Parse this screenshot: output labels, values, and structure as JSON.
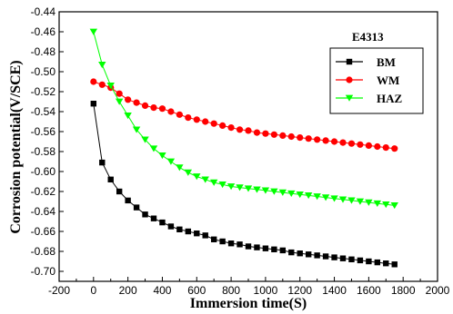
{
  "chart_data": {
    "type": "line",
    "title": "",
    "xlabel": "Immersion time(S)",
    "ylabel": "Corrosion potential(V/SCE)",
    "xlim": [
      -200,
      2000
    ],
    "ylim": [
      -0.71,
      -0.44
    ],
    "xticks": [
      -200,
      0,
      200,
      400,
      600,
      800,
      1000,
      1200,
      1400,
      1600,
      1800,
      2000
    ],
    "yticks": [
      -0.7,
      -0.68,
      -0.66,
      -0.64,
      -0.62,
      -0.6,
      -0.58,
      -0.56,
      -0.54,
      -0.52,
      -0.5,
      -0.48,
      -0.46,
      -0.44
    ],
    "xtick_labels": [
      "-200",
      "0",
      "200",
      "400",
      "600",
      "800",
      "1000",
      "1200",
      "1400",
      "1600",
      "1800",
      "2000"
    ],
    "ytick_labels": [
      "-0.70",
      "-0.68",
      "-0.66",
      "-0.64",
      "-0.62",
      "-0.60",
      "-0.58",
      "-0.56",
      "-0.54",
      "-0.52",
      "-0.50",
      "-0.48",
      "-0.46",
      "-0.44"
    ],
    "legend": {
      "title": "E4313",
      "placement": "top-right",
      "entries": [
        "BM",
        "WM",
        "HAZ"
      ]
    },
    "series": [
      {
        "name": "BM",
        "color": "#000000",
        "marker": "square",
        "x": [
          0,
          50,
          100,
          150,
          200,
          250,
          300,
          350,
          400,
          450,
          500,
          550,
          600,
          650,
          700,
          750,
          800,
          850,
          900,
          950,
          1000,
          1050,
          1100,
          1150,
          1200,
          1250,
          1300,
          1350,
          1400,
          1450,
          1500,
          1550,
          1600,
          1650,
          1700,
          1750
        ],
        "y": [
          -0.532,
          -0.591,
          -0.608,
          -0.62,
          -0.629,
          -0.636,
          -0.643,
          -0.647,
          -0.651,
          -0.655,
          -0.658,
          -0.66,
          -0.662,
          -0.664,
          -0.668,
          -0.67,
          -0.672,
          -0.673,
          -0.675,
          -0.676,
          -0.677,
          -0.678,
          -0.679,
          -0.681,
          -0.682,
          -0.683,
          -0.684,
          -0.685,
          -0.686,
          -0.687,
          -0.688,
          -0.689,
          -0.69,
          -0.691,
          -0.692,
          -0.693
        ]
      },
      {
        "name": "WM",
        "color": "#ff0000",
        "marker": "circle",
        "x": [
          0,
          50,
          100,
          150,
          200,
          250,
          300,
          350,
          400,
          450,
          500,
          550,
          600,
          650,
          700,
          750,
          800,
          850,
          900,
          950,
          1000,
          1050,
          1100,
          1150,
          1200,
          1250,
          1300,
          1350,
          1400,
          1450,
          1500,
          1550,
          1600,
          1650,
          1700,
          1750
        ],
        "y": [
          -0.51,
          -0.513,
          -0.516,
          -0.522,
          -0.528,
          -0.531,
          -0.534,
          -0.536,
          -0.537,
          -0.54,
          -0.543,
          -0.546,
          -0.548,
          -0.55,
          -0.552,
          -0.554,
          -0.556,
          -0.558,
          -0.559,
          -0.561,
          -0.562,
          -0.563,
          -0.564,
          -0.565,
          -0.566,
          -0.567,
          -0.568,
          -0.569,
          -0.57,
          -0.571,
          -0.572,
          -0.573,
          -0.574,
          -0.575,
          -0.576,
          -0.577
        ]
      },
      {
        "name": "HAZ",
        "color": "#00ff00",
        "marker": "triangle-down",
        "x": [
          0,
          50,
          100,
          150,
          200,
          250,
          300,
          350,
          400,
          450,
          500,
          550,
          600,
          650,
          700,
          750,
          800,
          850,
          900,
          950,
          1000,
          1050,
          1100,
          1150,
          1200,
          1250,
          1300,
          1350,
          1400,
          1450,
          1500,
          1550,
          1600,
          1650,
          1700,
          1750
        ],
        "y": [
          -0.46,
          -0.493,
          -0.514,
          -0.53,
          -0.544,
          -0.558,
          -0.568,
          -0.577,
          -0.584,
          -0.59,
          -0.596,
          -0.601,
          -0.605,
          -0.608,
          -0.611,
          -0.613,
          -0.615,
          -0.616,
          -0.617,
          -0.618,
          -0.619,
          -0.62,
          -0.621,
          -0.622,
          -0.623,
          -0.624,
          -0.625,
          -0.626,
          -0.627,
          -0.628,
          -0.629,
          -0.63,
          -0.631,
          -0.632,
          -0.633,
          -0.634
        ]
      }
    ]
  }
}
